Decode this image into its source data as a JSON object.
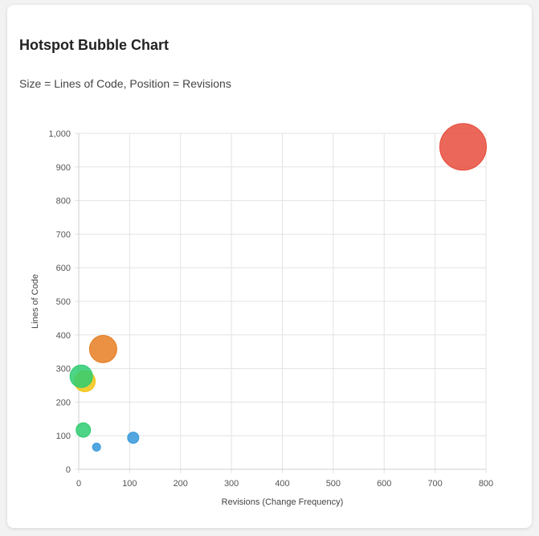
{
  "card": {
    "title": "Hotspot Bubble Chart",
    "subtitle": "Size = Lines of Code, Position = Revisions"
  },
  "chart_data": {
    "type": "scatter",
    "variant": "bubble",
    "title": "Hotspot Bubble Chart",
    "subtitle": "Size = Lines of Code, Position = Revisions",
    "xlabel": "Revisions (Change Frequency)",
    "ylabel": "Lines of Code",
    "xlim": [
      0,
      800
    ],
    "ylim": [
      0,
      1000
    ],
    "x_ticks": [
      0,
      100,
      200,
      300,
      400,
      500,
      600,
      700,
      800
    ],
    "y_ticks": [
      0,
      100,
      200,
      300,
      400,
      500,
      600,
      700,
      800,
      900,
      1000
    ],
    "x_tick_labels": [
      "0",
      "100",
      "200",
      "300",
      "400",
      "500",
      "600",
      "700",
      "800"
    ],
    "y_tick_labels": [
      "0",
      "100",
      "200",
      "300",
      "400",
      "500",
      "600",
      "700",
      "800",
      "900",
      "1,000"
    ],
    "grid": true,
    "legend": "none",
    "points": [
      {
        "x": 755,
        "y": 960,
        "r": 29,
        "color": "#e74c3c"
      },
      {
        "x": 48,
        "y": 358,
        "r": 17,
        "color": "#e67e22"
      },
      {
        "x": 12,
        "y": 262,
        "r": 13,
        "color": "#f1c40f"
      },
      {
        "x": 5,
        "y": 277,
        "r": 14,
        "color": "#2ecc71"
      },
      {
        "x": 9,
        "y": 117,
        "r": 9,
        "color": "#2ecc71"
      },
      {
        "x": 107,
        "y": 94,
        "r": 7,
        "color": "#3498db"
      },
      {
        "x": 35,
        "y": 66,
        "r": 5,
        "color": "#3498db"
      }
    ]
  }
}
